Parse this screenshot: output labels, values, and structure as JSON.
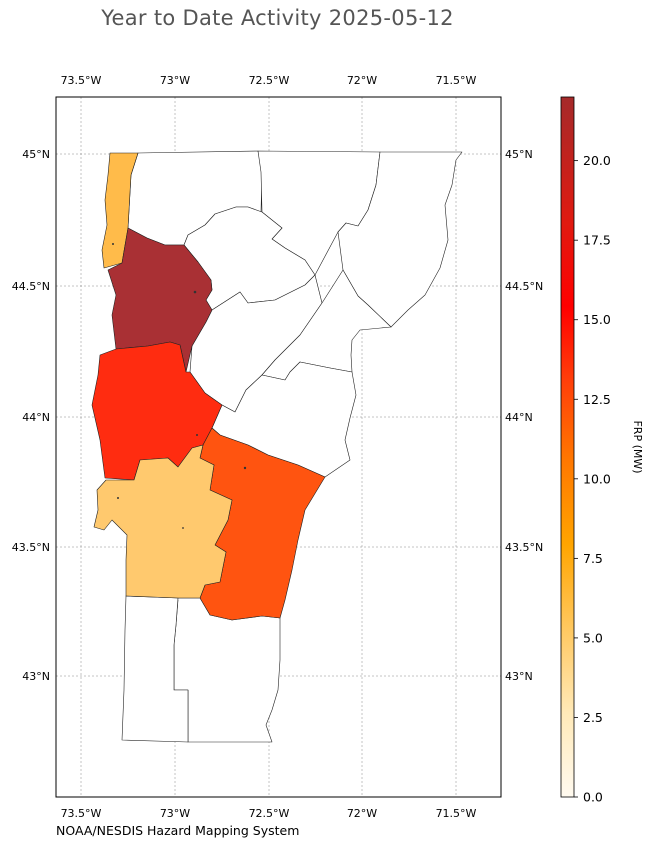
{
  "title": "Year to Date Activity 2025-05-12",
  "credit": "NOAA/NESDIS Hazard Mapping System",
  "colorbar": {
    "label": "FRP (MW)",
    "min": 0,
    "max": 22,
    "ticks": [
      "0.0",
      "2.5",
      "5.0",
      "7.5",
      "10.0",
      "12.5",
      "15.0",
      "17.5",
      "20.0"
    ],
    "tick_values": [
      0,
      2.5,
      5,
      7.5,
      10,
      12.5,
      15,
      17.5,
      20
    ],
    "colormap": "YlOrRd-hot",
    "stops": [
      "#fff8e8",
      "#ffd980",
      "#ffb32a",
      "#ff8c00",
      "#ff4a10",
      "#ff1a00",
      "#e01010",
      "#a52a2a"
    ]
  },
  "axes": {
    "lon_ticks": [
      "73.5°W",
      "73°W",
      "72.5°W",
      "72°W",
      "71.5°W"
    ],
    "lat_ticks": [
      "45°N",
      "44.5°N",
      "44°N",
      "43.5°N",
      "43°N"
    ],
    "grid": true
  },
  "chart_data": {
    "type": "choropleth",
    "region": "Vermont counties",
    "value_label": "FRP (MW)",
    "counties": [
      {
        "id": "c1",
        "frp": 5.5
      },
      {
        "id": "c2",
        "frp": 22.0
      },
      {
        "id": "c3",
        "frp": 14.5
      },
      {
        "id": "c4",
        "frp": 12.0
      },
      {
        "id": "c5",
        "frp": 4.0
      },
      {
        "id": "c6",
        "frp": 0
      },
      {
        "id": "c7",
        "frp": 0
      },
      {
        "id": "c8",
        "frp": 0
      },
      {
        "id": "c9",
        "frp": 0
      },
      {
        "id": "c10",
        "frp": 0
      },
      {
        "id": "c11",
        "frp": 0
      },
      {
        "id": "c12",
        "frp": 0
      },
      {
        "id": "c13",
        "frp": 0
      },
      {
        "id": "c14",
        "frp": 0
      }
    ]
  }
}
